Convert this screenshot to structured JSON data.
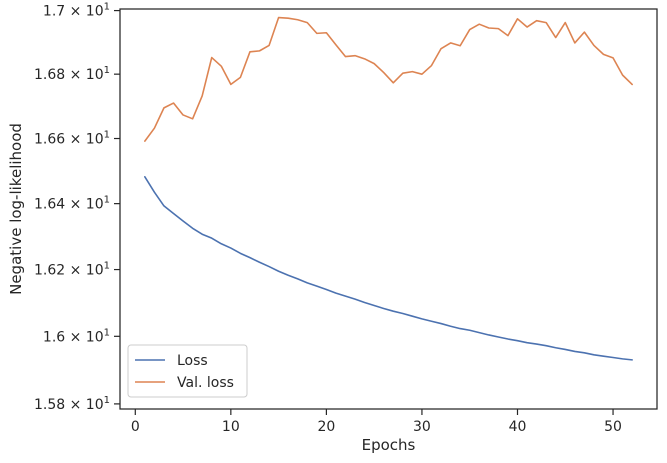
{
  "chart_data": {
    "type": "line",
    "xlabel": "Epochs",
    "ylabel": "Negative log-likelihood",
    "xlim": [
      -1.6,
      54.6
    ],
    "ylim": [
      15.785,
      17.005
    ],
    "x_scale": "linear",
    "y_scale": "log",
    "grid": false,
    "legend": "lower-left",
    "xticks": [
      {
        "value": 0,
        "label": "0"
      },
      {
        "value": 10,
        "label": "10"
      },
      {
        "value": 20,
        "label": "20"
      },
      {
        "value": 30,
        "label": "30"
      },
      {
        "value": 40,
        "label": "40"
      },
      {
        "value": 50,
        "label": "50"
      }
    ],
    "yticks": [
      {
        "value": 15.8,
        "mantissa": "1.58"
      },
      {
        "value": 16.0,
        "mantissa": "1.6"
      },
      {
        "value": 16.2,
        "mantissa": "1.62"
      },
      {
        "value": 16.4,
        "mantissa": "1.64"
      },
      {
        "value": 16.6,
        "mantissa": "1.66"
      },
      {
        "value": 16.8,
        "mantissa": "1.68"
      },
      {
        "value": 17.0,
        "mantissa": "1.7"
      }
    ],
    "ytick_suffix": "× 10",
    "ytick_exponent": "1",
    "x": [
      1,
      2,
      3,
      4,
      5,
      6,
      7,
      8,
      9,
      10,
      11,
      12,
      13,
      14,
      15,
      16,
      17,
      18,
      19,
      20,
      21,
      22,
      23,
      24,
      25,
      26,
      27,
      28,
      29,
      30,
      31,
      32,
      33,
      34,
      35,
      36,
      37,
      38,
      39,
      40,
      41,
      42,
      43,
      44,
      45,
      46,
      47,
      48,
      49,
      50,
      51,
      52
    ],
    "series": [
      {
        "name": "Loss",
        "color": "#4c72b0",
        "values": [
          16.482,
          16.435,
          16.393,
          16.37,
          16.347,
          16.325,
          16.307,
          16.295,
          16.278,
          16.265,
          16.249,
          16.236,
          16.222,
          16.209,
          16.195,
          16.183,
          16.172,
          16.16,
          16.15,
          16.14,
          16.129,
          16.12,
          16.111,
          16.101,
          16.092,
          16.083,
          16.075,
          16.068,
          16.06,
          16.052,
          16.045,
          16.038,
          16.03,
          16.023,
          16.018,
          16.011,
          16.004,
          15.998,
          15.992,
          15.987,
          15.981,
          15.977,
          15.972,
          15.966,
          15.961,
          15.955,
          15.951,
          15.945,
          15.941,
          15.937,
          15.933,
          15.93
        ]
      },
      {
        "name": "Val. loss",
        "color": "#dd8452",
        "values": [
          16.592,
          16.632,
          16.695,
          16.71,
          16.673,
          16.661,
          16.732,
          16.852,
          16.825,
          16.768,
          16.79,
          16.87,
          16.873,
          16.89,
          16.978,
          16.976,
          16.971,
          16.962,
          16.928,
          16.93,
          16.892,
          16.855,
          16.858,
          16.848,
          16.833,
          16.805,
          16.773,
          16.803,
          16.808,
          16.8,
          16.827,
          16.88,
          16.898,
          16.889,
          16.94,
          16.957,
          16.945,
          16.943,
          16.921,
          16.974,
          16.948,
          16.968,
          16.962,
          16.915,
          16.962,
          16.898,
          16.932,
          16.89,
          16.862,
          16.851,
          16.797,
          16.768
        ]
      }
    ]
  }
}
